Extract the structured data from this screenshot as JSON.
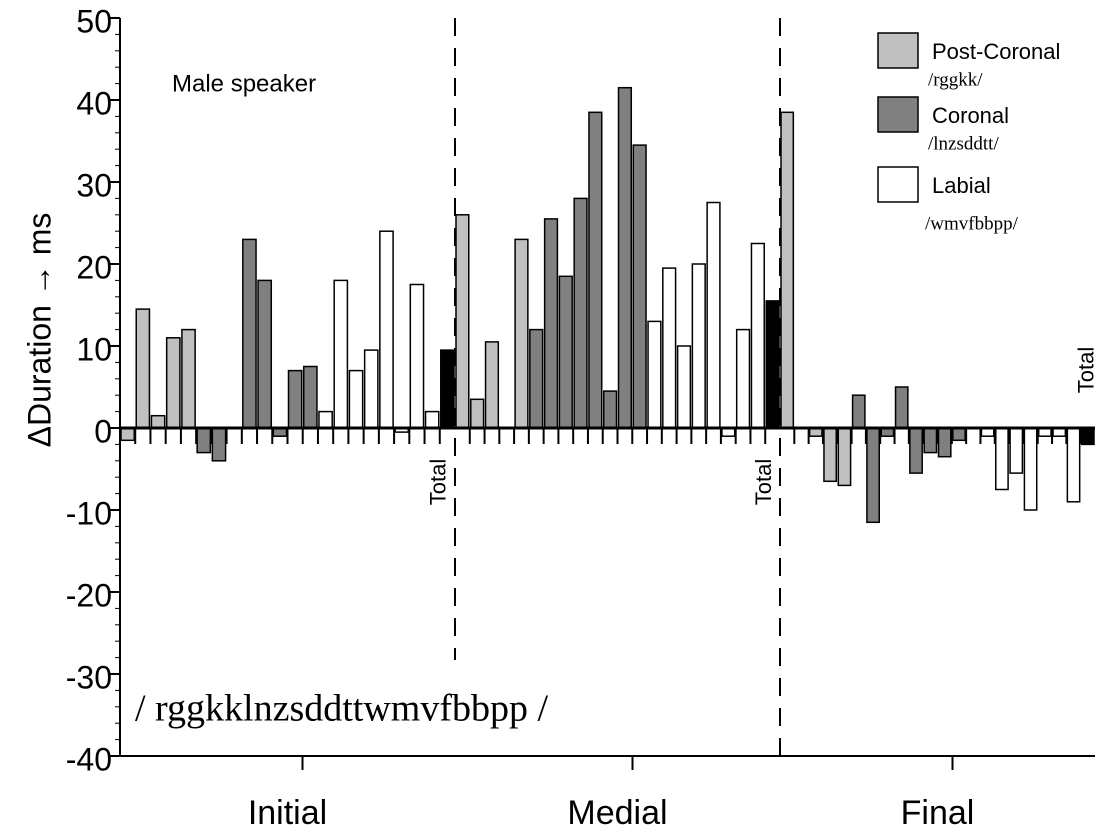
{
  "chart_data": {
    "type": "bar",
    "ylabel": "ΔDuration → ms",
    "annotation": "Male speaker",
    "phoneme_string": "/ rggkklnzsddttwmvfbbpp /",
    "total_label": "Total",
    "categories": [
      "Initial",
      "Medial",
      "Final"
    ],
    "series": [
      {
        "name": "Post-Coronal",
        "phonemes": "/rggkk/",
        "color": "#c0c0c0",
        "values": [
          [
            -1.5,
            14.5,
            1.5,
            11,
            12
          ],
          [
            26,
            3.5,
            10.5,
            0,
            23
          ],
          [
            38.5,
            0,
            -1,
            -6.5,
            -7
          ]
        ]
      },
      {
        "name": "Coronal",
        "phonemes": "/lnzsddtt/",
        "color": "#808080",
        "values": [
          [
            -3,
            -4,
            0,
            23,
            18,
            -1,
            7,
            7.5
          ],
          [
            12,
            25.5,
            18.5,
            28,
            38.5,
            4.5,
            41.5,
            34.5
          ],
          [
            4,
            -11.5,
            -1,
            5,
            -5.5,
            -3,
            -3.5,
            -1.5
          ]
        ]
      },
      {
        "name": "Labial",
        "phonemes": "/wmvfbbpp/",
        "color": "#ffffff",
        "values": [
          [
            2,
            18,
            7,
            9.5,
            24,
            -0.5,
            17.5,
            2
          ],
          [
            13,
            19.5,
            10,
            20,
            27.5,
            -1,
            12,
            22.5
          ],
          [
            0,
            -1,
            -7.5,
            -5.5,
            -10,
            -1,
            -1,
            -9
          ]
        ]
      }
    ],
    "totals": {
      "color": "#000000",
      "values": [
        9.5,
        15.5,
        -2
      ]
    },
    "ylim": [
      -40,
      50
    ],
    "yticks": [
      -40,
      -30,
      -20,
      -10,
      0,
      10,
      20,
      30,
      40,
      50
    ]
  }
}
